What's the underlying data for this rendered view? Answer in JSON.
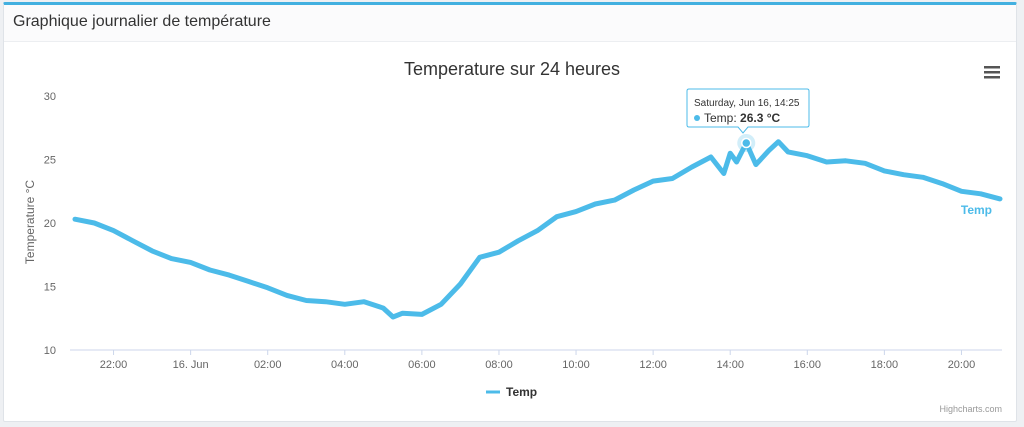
{
  "panel": {
    "title": "Graphique journalier de température"
  },
  "colors": {
    "series": "#4cbbe9",
    "accent": "#42b0e0"
  },
  "credits": "Highcharts.com",
  "menu_icon": "hamburger-icon",
  "tooltip": {
    "date": "Saturday, Jun 16, 14:25",
    "series": "Temp: ",
    "value": "26.3 °C"
  },
  "chart_data": {
    "type": "line",
    "title": "Temperature sur 24 heures",
    "ylabel": "Temperature °C",
    "ylim": [
      10,
      30
    ],
    "yticks": [
      10,
      15,
      20,
      25,
      30
    ],
    "x_start": "2018-06-15 21:00",
    "x_end": "2018-06-16 21:00",
    "xticks": [
      {
        "label": "22:00",
        "x": "2018-06-15 22:00"
      },
      {
        "label": "16. Jun",
        "x": "2018-06-16 00:00"
      },
      {
        "label": "02:00",
        "x": "2018-06-16 02:00"
      },
      {
        "label": "04:00",
        "x": "2018-06-16 04:00"
      },
      {
        "label": "06:00",
        "x": "2018-06-16 06:00"
      },
      {
        "label": "08:00",
        "x": "2018-06-16 08:00"
      },
      {
        "label": "10:00",
        "x": "2018-06-16 10:00"
      },
      {
        "label": "12:00",
        "x": "2018-06-16 12:00"
      },
      {
        "label": "14:00",
        "x": "2018-06-16 14:00"
      },
      {
        "label": "16:00",
        "x": "2018-06-16 16:00"
      },
      {
        "label": "18:00",
        "x": "2018-06-16 18:00"
      },
      {
        "label": "20:00",
        "x": "2018-06-16 20:00"
      }
    ],
    "legend": "bottom-center",
    "grid": false,
    "series": [
      {
        "name": "Temp",
        "x": [
          "2018-06-15 21:00",
          "2018-06-15 21:30",
          "2018-06-15 22:00",
          "2018-06-15 22:30",
          "2018-06-15 23:00",
          "2018-06-15 23:30",
          "2018-06-16 00:00",
          "2018-06-16 00:30",
          "2018-06-16 01:00",
          "2018-06-16 01:30",
          "2018-06-16 02:00",
          "2018-06-16 02:30",
          "2018-06-16 03:00",
          "2018-06-16 03:30",
          "2018-06-16 04:00",
          "2018-06-16 04:30",
          "2018-06-16 05:00",
          "2018-06-16 05:15",
          "2018-06-16 05:30",
          "2018-06-16 06:00",
          "2018-06-16 06:30",
          "2018-06-16 07:00",
          "2018-06-16 07:30",
          "2018-06-16 08:00",
          "2018-06-16 08:30",
          "2018-06-16 09:00",
          "2018-06-16 09:30",
          "2018-06-16 10:00",
          "2018-06-16 10:30",
          "2018-06-16 11:00",
          "2018-06-16 11:30",
          "2018-06-16 12:00",
          "2018-06-16 12:30",
          "2018-06-16 13:00",
          "2018-06-16 13:30",
          "2018-06-16 13:50",
          "2018-06-16 14:00",
          "2018-06-16 14:10",
          "2018-06-16 14:25",
          "2018-06-16 14:40",
          "2018-06-16 15:00",
          "2018-06-16 15:15",
          "2018-06-16 15:30",
          "2018-06-16 16:00",
          "2018-06-16 16:30",
          "2018-06-16 17:00",
          "2018-06-16 17:30",
          "2018-06-16 18:00",
          "2018-06-16 18:30",
          "2018-06-16 19:00",
          "2018-06-16 19:30",
          "2018-06-16 20:00",
          "2018-06-16 20:30",
          "2018-06-16 21:00"
        ],
        "values": [
          20.3,
          20.0,
          19.4,
          18.6,
          17.8,
          17.2,
          16.9,
          16.3,
          15.9,
          15.4,
          14.9,
          14.3,
          13.9,
          13.8,
          13.6,
          13.8,
          13.3,
          12.6,
          12.9,
          12.8,
          13.6,
          15.2,
          17.3,
          17.7,
          18.6,
          19.4,
          20.5,
          20.9,
          21.5,
          21.8,
          22.6,
          23.3,
          23.5,
          24.4,
          25.2,
          23.9,
          25.5,
          24.8,
          26.3,
          24.6,
          25.7,
          26.4,
          25.6,
          25.3,
          24.8,
          24.9,
          24.7,
          24.1,
          23.8,
          23.6,
          23.1,
          22.5,
          22.3,
          21.9
        ]
      }
    ]
  }
}
